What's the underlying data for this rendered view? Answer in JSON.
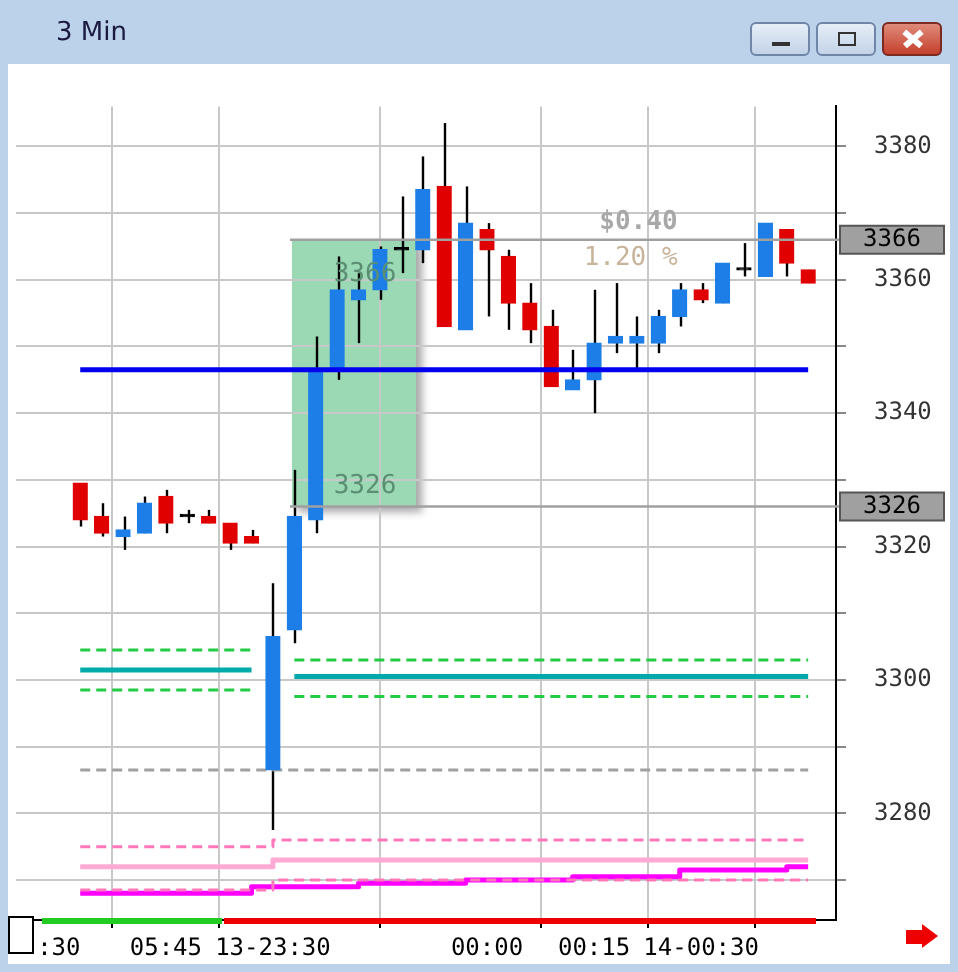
{
  "chart_data": {
    "type": "candlestick",
    "title": "3 Min",
    "categories": [
      ":30",
      null,
      null,
      null,
      null,
      "05:45",
      null,
      null,
      null,
      null,
      "13-23:30",
      null,
      null,
      null,
      null,
      null,
      null,
      null,
      null,
      null,
      "00:00",
      null,
      null,
      null,
      null,
      "00:15",
      null,
      null,
      null,
      null,
      "14-00:30",
      null,
      null,
      null,
      null,
      null
    ],
    "ohlc": [
      null,
      [
        3329.5,
        3329.5,
        3323,
        3324
      ],
      [
        3324.5,
        3326.5,
        3321.5,
        3322
      ],
      [
        3321.5,
        3324.5,
        3319.5,
        3322.5
      ],
      [
        3322,
        3327.5,
        3322,
        3326.5
      ],
      [
        3327.5,
        3328.5,
        3322,
        3323.5
      ],
      [
        3324.5,
        3325.5,
        3323.5,
        3324.5
      ],
      [
        3324.5,
        3325.5,
        3323.5,
        3323.5
      ],
      [
        3323.5,
        3323.5,
        3319.5,
        3320.5
      ],
      [
        3321.5,
        3322.5,
        3320.5,
        3320.5
      ],
      [
        3286.5,
        3314.5,
        3277.5,
        3306.5
      ],
      [
        3307.5,
        3331.5,
        3305.5,
        3324.5
      ],
      [
        3324,
        3351.5,
        3322,
        3346.5
      ],
      [
        3346.5,
        3363.5,
        3345,
        3358.5
      ],
      [
        3357,
        3361,
        3350.5,
        3358.5
      ],
      [
        3358.5,
        3365,
        3357,
        3364.5
      ],
      [
        3364.5,
        3372.5,
        3361,
        3364.5
      ],
      [
        3364.5,
        3378.5,
        3362.5,
        3373.5
      ],
      [
        3374,
        3383.5,
        3353,
        3353
      ],
      [
        3352.5,
        3374,
        3352.5,
        3368.5
      ],
      [
        3367.5,
        3368.5,
        3354.5,
        3364.5
      ],
      [
        3363.5,
        3364.5,
        3352.5,
        3356.5
      ],
      [
        3356.5,
        3359.5,
        3350.5,
        3352.5
      ],
      [
        3353,
        3355.5,
        3344,
        3344
      ],
      [
        3343.5,
        3349.5,
        3343.5,
        3345
      ],
      [
        3345,
        3358.5,
        3340,
        3350.5
      ],
      [
        3350.5,
        3359.5,
        3349,
        3351.5
      ],
      [
        3350.5,
        3354.5,
        3346.5,
        3351.5
      ],
      [
        3350.5,
        3355.5,
        3349,
        3354.5
      ],
      [
        3354.5,
        3359.5,
        3353,
        3358.5
      ],
      [
        3358.5,
        3359.5,
        3356.5,
        3357
      ],
      [
        3356.5,
        3362.5,
        3356.5,
        3362.5
      ],
      [
        3361.5,
        3365.5,
        3360.5,
        3361.5
      ],
      [
        3360.5,
        3368.5,
        3360.5,
        3368.5
      ],
      [
        3367.5,
        3367.5,
        3360.5,
        3362.5
      ],
      [
        3361.5,
        3361.5,
        3359.5,
        3359.5
      ]
    ],
    "colors": [
      null,
      "#e00000",
      "#e00000",
      "#1c7ee6",
      "#1c7ee6",
      "#e00000",
      "#000000",
      "#e00000",
      "#e00000",
      "#e00000",
      "#1c7ee6",
      "#1c7ee6",
      "#1c7ee6",
      "#1c7ee6",
      "#1c7ee6",
      "#1c7ee6",
      "#000000",
      "#1c7ee6",
      "#e00000",
      "#1c7ee6",
      "#e00000",
      "#e00000",
      "#e00000",
      "#e00000",
      "#1c7ee6",
      "#1c7ee6",
      "#1c7ee6",
      "#1c7ee6",
      "#1c7ee6",
      "#1c7ee6",
      "#e00000",
      "#1c7ee6",
      "#000000",
      "#1c7ee6",
      "#e00000",
      "#e00000"
    ],
    "series": [
      {
        "type": "step",
        "color": "#22cc44",
        "line_style": "dashed",
        "values": [
          null,
          3304.5,
          3304.5,
          3304.5,
          3304.5,
          3304.5,
          3304.5,
          3304.5,
          3304.5,
          3304.5,
          null,
          3303,
          3303,
          3303,
          3303,
          3303,
          3303,
          3303,
          3303,
          3303,
          3303,
          3303,
          3303,
          3303,
          3303,
          3303,
          3303,
          3303,
          3303,
          3303,
          3303,
          3303,
          3303,
          3303,
          3303,
          3303
        ]
      },
      {
        "type": "step",
        "color": "#00aaaa",
        "line_style": "solid",
        "values": [
          null,
          3301.5,
          3301.5,
          3301.5,
          3301.5,
          3301.5,
          3301.5,
          3301.5,
          3301.5,
          3301.5,
          null,
          3300.5,
          3300.5,
          3300.5,
          3300.5,
          3300.5,
          3300.5,
          3300.5,
          3300.5,
          3300.5,
          3300.5,
          3300.5,
          3300.5,
          3300.5,
          3300.5,
          3300.5,
          3300.5,
          3300.5,
          3300.5,
          3300.5,
          3300.5,
          3300.5,
          3300.5,
          3300.5,
          3300.5,
          3300.5
        ]
      },
      {
        "type": "step",
        "color": "#22cc44",
        "line_style": "dashed",
        "values": [
          null,
          3298.5,
          3298.5,
          3298.5,
          3298.5,
          3298.5,
          3298.5,
          3298.5,
          3298.5,
          3298.5,
          null,
          3297.5,
          3297.5,
          3297.5,
          3297.5,
          3297.5,
          3297.5,
          3297.5,
          3297.5,
          3297.5,
          3297.5,
          3297.5,
          3297.5,
          3297.5,
          3297.5,
          3297.5,
          3297.5,
          3297.5,
          3297.5,
          3297.5,
          3297.5,
          3297.5,
          3297.5,
          3297.5,
          3297.5,
          3297.5
        ]
      },
      {
        "type": "step",
        "color": "#a0a0a0",
        "line_style": "dashed",
        "values": [
          null,
          3286.5,
          3286.5,
          3286.5,
          3286.5,
          3286.5,
          3286.5,
          3286.5,
          3286.5,
          3286.5,
          3286.5,
          3286.5,
          3286.5,
          3286.5,
          3286.5,
          3286.5,
          3286.5,
          3286.5,
          3286.5,
          3286.5,
          3286.5,
          3286.5,
          3286.5,
          3286.5,
          3286.5,
          3286.5,
          3286.5,
          3286.5,
          3286.5,
          3286.5,
          3286.5,
          3286.5,
          3286.5,
          3286.5,
          3286.5,
          3286.5
        ]
      },
      {
        "type": "step",
        "color": "#ff77bb",
        "line_style": "dashed",
        "values": [
          null,
          3275,
          3275,
          3275,
          3275,
          3275,
          3275,
          3275,
          3275,
          3275,
          3276,
          3276,
          3276,
          3276,
          3276,
          3276,
          3276,
          3276,
          3276,
          3276,
          3276,
          3276,
          3276,
          3276,
          3276,
          3276,
          3276,
          3276,
          3276,
          3276,
          3276,
          3276,
          3276,
          3276,
          3276,
          3276
        ]
      },
      {
        "type": "step",
        "color": "#ffaad4",
        "line_style": "solid",
        "values": [
          null,
          3272,
          3272,
          3272,
          3272,
          3272,
          3272,
          3272,
          3272,
          3272,
          3273,
          3273,
          3273,
          3273,
          3273,
          3273,
          3273,
          3273,
          3273,
          3273,
          3273,
          3273,
          3273,
          3273,
          3273,
          3273,
          3273,
          3273,
          3273,
          3273,
          3273,
          3273,
          3273,
          3273,
          3273,
          3273
        ]
      },
      {
        "type": "step",
        "color": "#ff77bb",
        "line_style": "dashed",
        "values": [
          null,
          3268.5,
          3268.5,
          3268.5,
          3268.5,
          3268.5,
          3268.5,
          3268.5,
          3268.5,
          3268.5,
          3270,
          3270,
          3270,
          3270,
          3270,
          3270,
          3270,
          3270,
          3270,
          3270,
          3270,
          3270,
          3270,
          3270,
          3270,
          3270,
          3270,
          3270,
          3270,
          3270,
          3270,
          3270,
          3270,
          3270,
          3270,
          3270
        ]
      },
      {
        "type": "step",
        "color": "#ff00ff",
        "line_style": "solid",
        "values": [
          null,
          3268,
          3268,
          3268,
          3268,
          3268,
          3268,
          3268,
          3268,
          3269,
          3269,
          3269,
          3269,
          3269,
          3269.5,
          3269.5,
          3269.5,
          3269.5,
          3269.5,
          3270,
          3270,
          3270,
          3270,
          3270,
          3270.5,
          3270.5,
          3270.5,
          3270.5,
          3270.5,
          3271.5,
          3271.5,
          3271.5,
          3271.5,
          3271.5,
          3272,
          3272
        ]
      }
    ],
    "ref_lines": [
      {
        "axis": "y",
        "value": 3346.5,
        "color": "#0000ee"
      },
      {
        "axis": "y",
        "value": 3366,
        "label": "3366",
        "color": "#a0a0a0"
      },
      {
        "axis": "y",
        "value": 3326,
        "label": "3326",
        "color": "#a0a0a0"
      }
    ],
    "annotations": [
      "$0.40",
      "1.20 %",
      "3366",
      "3326"
    ],
    "ylim": [
      3264,
      3386
    ],
    "yticks": [
      {
        "value": 3270,
        "label": null
      },
      3280,
      {
        "value": 3290,
        "label": null
      },
      3300,
      {
        "value": 3310,
        "label": null
      },
      3320,
      {
        "value": 3330,
        "label": null
      },
      3340,
      {
        "value": 3350,
        "label": null
      },
      3360,
      {
        "value": 3370,
        "label": null
      },
      3380
    ],
    "grid": true,
    "legend": false
  }
}
